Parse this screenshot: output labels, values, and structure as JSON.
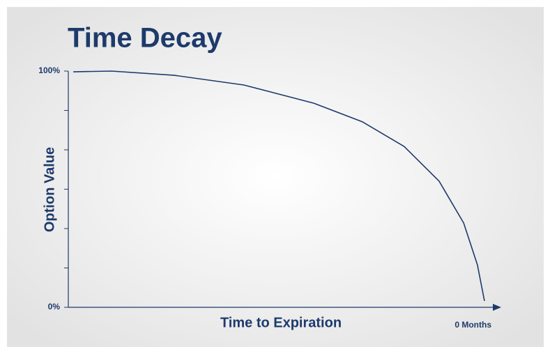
{
  "chart_data": {
    "type": "line",
    "title": "Time Decay",
    "x_label": "Time to Expiration",
    "y_label": "Option Value",
    "x": [
      1.2,
      10.4,
      25.5,
      42.2,
      59,
      70.7,
      80.7,
      89.1,
      95,
      98.3,
      100
    ],
    "series": [
      {
        "color": "#1d3a6b",
        "values": [
          99.7,
          100,
          98.2,
          94.1,
          86.4,
          78.5,
          68.1,
          53.4,
          35.7,
          18,
          2.7
        ]
      }
    ],
    "xlim": [
      0,
      100
    ],
    "ylim": [
      0,
      100
    ],
    "xticks": [
      {
        "value": 100,
        "label": "0 Months"
      }
    ],
    "yticks": [
      {
        "value": 0,
        "label": "0%"
      },
      {
        "value": 100,
        "label": "100%"
      }
    ],
    "yminorticks": [
      16.67,
      33.33,
      50,
      66.67,
      83.33
    ],
    "grid": false
  }
}
